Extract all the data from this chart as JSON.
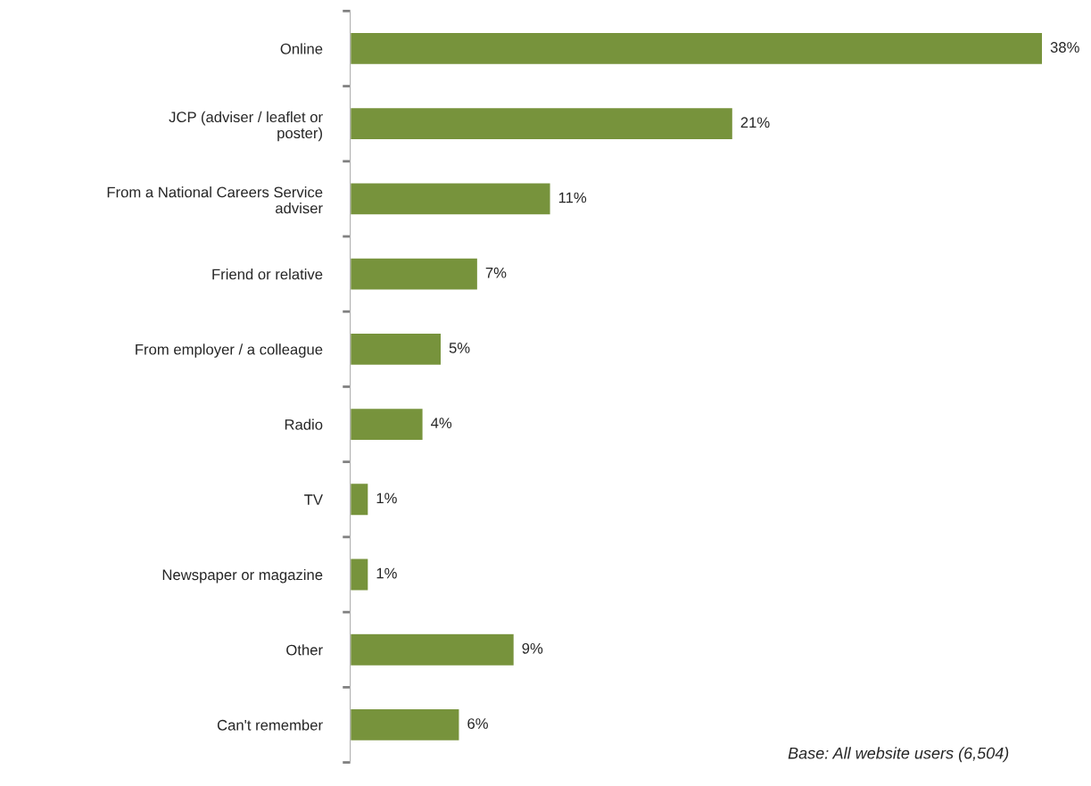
{
  "chart_data": {
    "type": "bar",
    "orientation": "horizontal",
    "categories": [
      "Online",
      "JCP (adviser / leaflet or poster)",
      "From a National Careers Service adviser",
      "Friend or relative",
      "From employer / a colleague",
      "Radio",
      "TV",
      "Newspaper or magazine",
      "Other",
      "Can't remember"
    ],
    "values": [
      38,
      21,
      11,
      7,
      5,
      4,
      1,
      1,
      9,
      6
    ],
    "value_labels": [
      "38%",
      "21%",
      "11%",
      "7%",
      "5%",
      "4%",
      "1%",
      "1%",
      "9%",
      "6%"
    ],
    "color": "#77933c",
    "grid": false,
    "legend": false,
    "annotations": [
      "Base: All website users (6,504)"
    ]
  }
}
